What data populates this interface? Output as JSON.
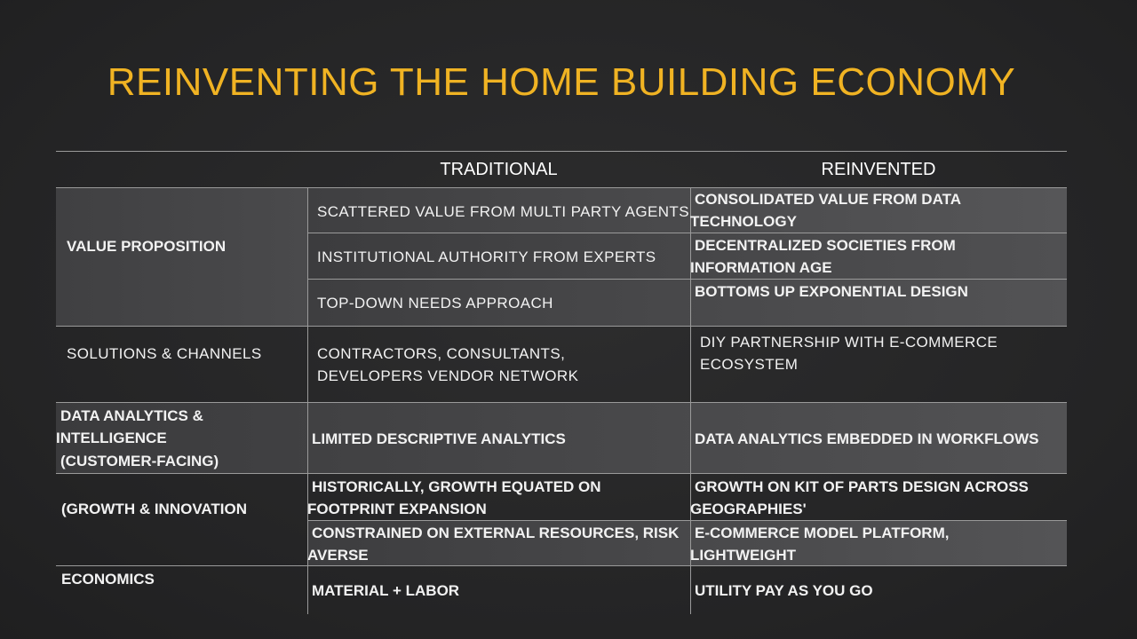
{
  "title": "REINVENTING THE HOME BUILDING ECONOMY",
  "headers": {
    "traditional": "TRADITIONAL",
    "reinvented": "REINVENTED"
  },
  "rows": {
    "value_proposition": {
      "label": "VALUE PROPOSITION",
      "items": [
        {
          "traditional": "SCATTERED VALUE FROM MULTI PARTY AGENTS",
          "reinvented": "CONSOLIDATED VALUE FROM DATA TECHNOLOGY"
        },
        {
          "traditional": "INSTITUTIONAL AUTHORITY FROM EXPERTS",
          "reinvented": "DECENTRALIZED SOCIETIES FROM INFORMATION AGE"
        },
        {
          "traditional": "TOP-DOWN NEEDS APPROACH",
          "reinvented": "BOTTOMS UP EXPONENTIAL DESIGN"
        }
      ]
    },
    "solutions_channels": {
      "label": "SOLUTIONS & CHANNELS",
      "traditional": "CONTRACTORS, CONSULTANTS, DEVELOPERS VENDOR NETWORK",
      "reinvented": "DIY PARTNERSHIP WITH E-COMMERCE ECOSYSTEM"
    },
    "data_analytics": {
      "label_line1": "DATA ANALYTICS &",
      "label_line2": "INTELLIGENCE",
      "label_line3": "(CUSTOMER-FACING)",
      "traditional": "LIMITED DESCRIPTIVE ANALYTICS",
      "reinvented": "DATA ANALYTICS EMBEDDED IN WORKFLOWS"
    },
    "growth_innovation": {
      "label": "(GROWTH & INNOVATION",
      "items": [
        {
          "traditional": "HISTORICALLY, GROWTH EQUATED ON FOOTPRINT EXPANSION",
          "reinvented": "GROWTH ON KIT OF PARTS DESIGN ACROSS GEOGRAPHIES'"
        },
        {
          "traditional": "CONSTRAINED ON EXTERNAL RESOURCES, RISK AVERSE",
          "reinvented": "E-COMMERCE MODEL PLATFORM, LIGHTWEIGHT"
        }
      ]
    },
    "economics": {
      "label": "ECONOMICS",
      "traditional": "MATERIAL + LABOR",
      "reinvented": "UTILITY PAY AS YOU GO"
    }
  },
  "colors": {
    "title": "#f0b323",
    "band_dark": "#3d3d3f",
    "band_light": "#535355",
    "rule": "#9a9a9a"
  }
}
